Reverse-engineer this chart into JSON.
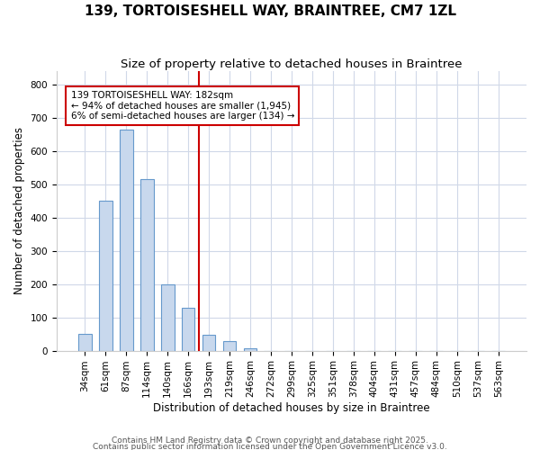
{
  "title": "139, TORTOISESHELL WAY, BRAINTREE, CM7 1ZL",
  "subtitle": "Size of property relative to detached houses in Braintree",
  "xlabel": "Distribution of detached houses by size in Braintree",
  "ylabel": "Number of detached properties",
  "bin_labels": [
    "34sqm",
    "61sqm",
    "87sqm",
    "114sqm",
    "140sqm",
    "166sqm",
    "193sqm",
    "219sqm",
    "246sqm",
    "272sqm",
    "299sqm",
    "325sqm",
    "351sqm",
    "378sqm",
    "404sqm",
    "431sqm",
    "457sqm",
    "484sqm",
    "510sqm",
    "537sqm",
    "563sqm"
  ],
  "bin_values": [
    50,
    452,
    665,
    515,
    200,
    130,
    48,
    28,
    6,
    0,
    0,
    0,
    0,
    0,
    0,
    0,
    0,
    0,
    0,
    0,
    0
  ],
  "bar_color": "#c8d8ed",
  "bar_edge_color": "#6699cc",
  "vline_color": "#cc0000",
  "annotation_text": "139 TORTOISESHELL WAY: 182sqm\n← 94% of detached houses are smaller (1,945)\n6% of semi-detached houses are larger (134) →",
  "annotation_box_facecolor": "#ffffff",
  "annotation_box_edgecolor": "#cc0000",
  "bg_color": "#ffffff",
  "plot_bg_color": "#ffffff",
  "grid_color": "#d0d8e8",
  "ylim": [
    0,
    840
  ],
  "yticks": [
    0,
    100,
    200,
    300,
    400,
    500,
    600,
    700,
    800
  ],
  "footer1": "Contains HM Land Registry data © Crown copyright and database right 2025.",
  "footer2": "Contains public sector information licensed under the Open Government Licence v3.0.",
  "title_fontsize": 11,
  "subtitle_fontsize": 9.5,
  "axis_label_fontsize": 8.5,
  "tick_fontsize": 7.5,
  "annotation_fontsize": 7.5,
  "footer_fontsize": 6.5
}
